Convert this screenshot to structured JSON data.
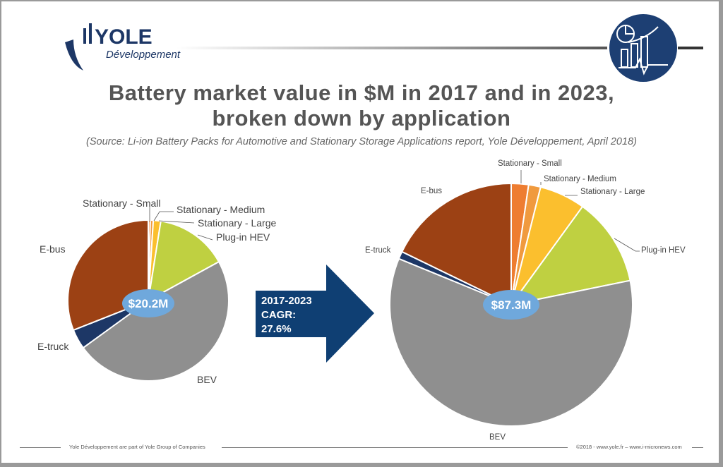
{
  "logo": {
    "brand": "YOLE",
    "sub": "Développement"
  },
  "title": {
    "line1": "Battery market value in $M in 2017 and in 2023,",
    "line2": "broken down by application"
  },
  "subtitle": "(Source: Li-ion Battery Packs for Automotive and Stationary Storage Applications report, Yole Développement, April 2018)",
  "arrow": {
    "line1": "2017-2023",
    "line2": "CAGR:",
    "line3": "27.6%",
    "color": "#0f3f73"
  },
  "chart_data": [
    {
      "type": "pie",
      "year": "2017",
      "total_label": "$20.2M",
      "categories": [
        "Stationary - Small",
        "Stationary - Medium",
        "Stationary - Large",
        "Plug-in HEV",
        "BEV",
        "E-truck",
        "E-bus"
      ],
      "values_pct": [
        0.4,
        0.6,
        1.5,
        14.5,
        48.0,
        4.0,
        31.0
      ],
      "colors": [
        "#ee7d31",
        "#f09a3e",
        "#fbbf2e",
        "#bfd041",
        "#8f8f8f",
        "#1d3766",
        "#9c4114"
      ]
    },
    {
      "type": "pie",
      "year": "2023",
      "total_label": "$87.3M",
      "categories": [
        "Stationary - Small",
        "Stationary - Medium",
        "Stationary - Large",
        "Plug-in HEV",
        "BEV",
        "E-truck",
        "E-bus"
      ],
      "values_pct": [
        2.3,
        1.6,
        6.1,
        11.8,
        59.4,
        1.0,
        17.8
      ],
      "colors": [
        "#ee7d31",
        "#f09a3e",
        "#fbbf2e",
        "#bfd041",
        "#8f8f8f",
        "#1d3766",
        "#9c4114"
      ]
    }
  ],
  "footer": {
    "left": "Yole Développement are part of Yole Group of Companies",
    "right": "©2018 - www.yole.fr – www.i-micronews.com"
  }
}
